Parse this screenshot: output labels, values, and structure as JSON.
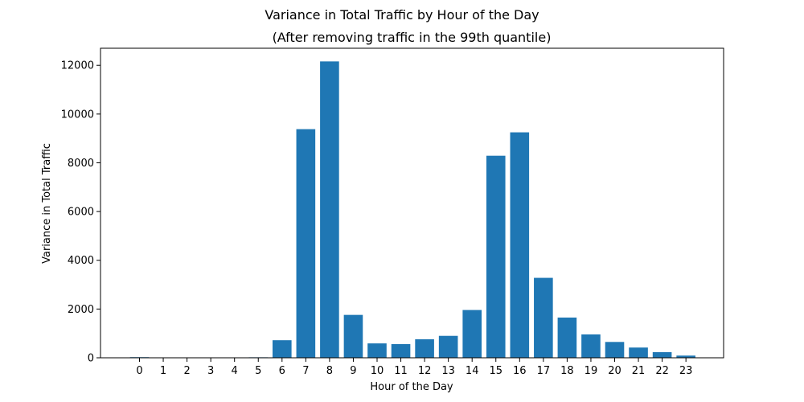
{
  "chart_data": {
    "type": "bar",
    "title": "Variance in Total Traffic by Hour of the Day",
    "subtitle": "(After removing traffic in the 99th quantile)",
    "xlabel": "Hour of the Day",
    "ylabel": "Variance in Total Traffic",
    "categories": [
      "0",
      "1",
      "2",
      "3",
      "4",
      "5",
      "6",
      "7",
      "8",
      "9",
      "10",
      "11",
      "12",
      "13",
      "14",
      "15",
      "16",
      "17",
      "18",
      "19",
      "20",
      "21",
      "22",
      "23"
    ],
    "values": [
      25,
      5,
      5,
      5,
      5,
      20,
      720,
      9380,
      12160,
      1760,
      590,
      560,
      760,
      900,
      1960,
      8290,
      9250,
      3280,
      1650,
      960,
      650,
      420,
      230,
      90
    ],
    "ylim": [
      0,
      12700
    ],
    "yticks": [
      0,
      2000,
      4000,
      6000,
      8000,
      10000,
      12000
    ],
    "ytick_labels": [
      "0",
      "2000",
      "4000",
      "6000",
      "8000",
      "10000",
      "12000"
    ],
    "bar_color": "#1f77b4",
    "grid": false,
    "legend": "none"
  }
}
